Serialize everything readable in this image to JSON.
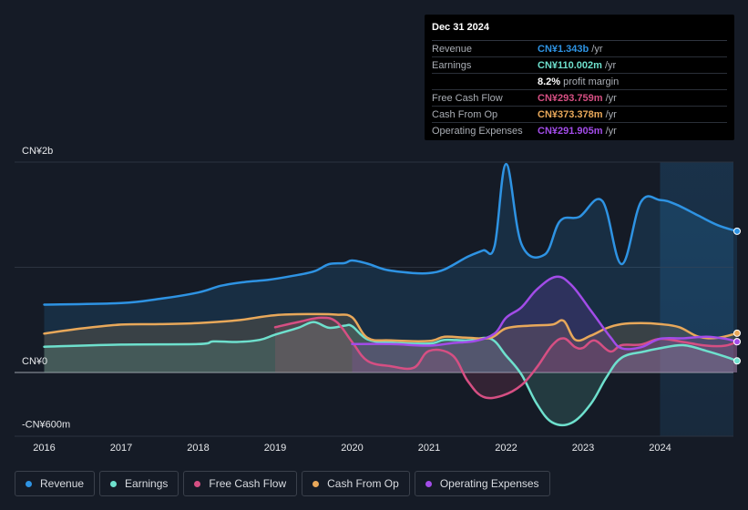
{
  "tooltip": {
    "date": "Dec 31 2024",
    "rows": [
      {
        "label": "Revenue",
        "value": "CN¥1.343b",
        "unit": "/yr",
        "color": "#2e93e3"
      },
      {
        "label": "Earnings",
        "value": "CN¥110.002m",
        "unit": "/yr",
        "color": "#6ee0cd"
      },
      {
        "label": "",
        "value": "8.2%",
        "unit": "profit margin",
        "color": "#ffffff"
      },
      {
        "label": "Free Cash Flow",
        "value": "CN¥293.759m",
        "unit": "/yr",
        "color": "#d64f83"
      },
      {
        "label": "Cash From Op",
        "value": "CN¥373.378m",
        "unit": "/yr",
        "color": "#e8a85a"
      },
      {
        "label": "Operating Expenses",
        "value": "CN¥291.905m",
        "unit": "/yr",
        "color": "#a24ce8"
      }
    ]
  },
  "legend": [
    {
      "label": "Revenue",
      "color": "#2e93e3"
    },
    {
      "label": "Earnings",
      "color": "#6ee0cd"
    },
    {
      "label": "Free Cash Flow",
      "color": "#d64f83"
    },
    {
      "label": "Cash From Op",
      "color": "#e8a85a"
    },
    {
      "label": "Operating Expenses",
      "color": "#a24ce8"
    }
  ],
  "chart_data": {
    "type": "area",
    "title": "",
    "xlabel": "",
    "ylabel": "",
    "y_tick_labels": [
      "CN¥2b",
      "CN¥0",
      "-CN¥600m"
    ],
    "y_ticks": [
      2000,
      0,
      -600
    ],
    "ylim": [
      -600,
      2000
    ],
    "xlim": [
      2015.6,
      2025.0
    ],
    "x_tick_labels": [
      "2016",
      "2017",
      "2018",
      "2019",
      "2020",
      "2021",
      "2022",
      "2023",
      "2024"
    ],
    "x_ticks": [
      2016,
      2017,
      2018,
      2019,
      2020,
      2021,
      2022,
      2023,
      2024
    ],
    "forecast_start": 2024.0,
    "series": [
      {
        "name": "Revenue",
        "color": "#2e93e3",
        "points": [
          [
            2016.0,
            645
          ],
          [
            2017.0,
            660
          ],
          [
            2017.5,
            700
          ],
          [
            2018.0,
            760
          ],
          [
            2018.3,
            825
          ],
          [
            2018.6,
            860
          ],
          [
            2018.9,
            880
          ],
          [
            2019.2,
            915
          ],
          [
            2019.5,
            960
          ],
          [
            2019.7,
            1030
          ],
          [
            2019.9,
            1040
          ],
          [
            2020.0,
            1065
          ],
          [
            2020.2,
            1035
          ],
          [
            2020.45,
            975
          ],
          [
            2020.8,
            945
          ],
          [
            2021.0,
            945
          ],
          [
            2021.2,
            980
          ],
          [
            2021.5,
            1100
          ],
          [
            2021.7,
            1160
          ],
          [
            2021.85,
            1200
          ],
          [
            2022.0,
            1982
          ],
          [
            2022.2,
            1220
          ],
          [
            2022.5,
            1120
          ],
          [
            2022.7,
            1440
          ],
          [
            2022.95,
            1480
          ],
          [
            2023.25,
            1630
          ],
          [
            2023.5,
            1030
          ],
          [
            2023.75,
            1620
          ],
          [
            2024.0,
            1640
          ],
          [
            2024.2,
            1600
          ],
          [
            2024.5,
            1490
          ],
          [
            2024.75,
            1400
          ],
          [
            2025.0,
            1343
          ]
        ]
      },
      {
        "name": "Earnings",
        "color": "#6ee0cd",
        "points": [
          [
            2016.0,
            245
          ],
          [
            2017.0,
            265
          ],
          [
            2018.0,
            270
          ],
          [
            2018.2,
            295
          ],
          [
            2018.5,
            290
          ],
          [
            2018.8,
            310
          ],
          [
            2019.0,
            360
          ],
          [
            2019.3,
            425
          ],
          [
            2019.5,
            480
          ],
          [
            2019.7,
            425
          ],
          [
            2019.9,
            445
          ],
          [
            2020.0,
            440
          ],
          [
            2020.2,
            315
          ],
          [
            2020.5,
            285
          ],
          [
            2021.0,
            275
          ],
          [
            2021.2,
            310
          ],
          [
            2021.5,
            305
          ],
          [
            2021.8,
            320
          ],
          [
            2022.0,
            160
          ],
          [
            2022.2,
            -20
          ],
          [
            2022.4,
            -300
          ],
          [
            2022.6,
            -475
          ],
          [
            2022.85,
            -480
          ],
          [
            2023.1,
            -300
          ],
          [
            2023.3,
            -50
          ],
          [
            2023.5,
            140
          ],
          [
            2023.8,
            200
          ],
          [
            2024.0,
            230
          ],
          [
            2024.3,
            260
          ],
          [
            2024.6,
            205
          ],
          [
            2024.85,
            150
          ],
          [
            2025.0,
            110
          ]
        ]
      },
      {
        "name": "Free Cash Flow",
        "color": "#d64f83",
        "points": [
          [
            2019.0,
            430
          ],
          [
            2019.3,
            480
          ],
          [
            2019.6,
            520
          ],
          [
            2019.8,
            480
          ],
          [
            2020.0,
            290
          ],
          [
            2020.2,
            110
          ],
          [
            2020.5,
            60
          ],
          [
            2020.8,
            45
          ],
          [
            2021.0,
            205
          ],
          [
            2021.3,
            165
          ],
          [
            2021.5,
            -80
          ],
          [
            2021.7,
            -230
          ],
          [
            2021.95,
            -220
          ],
          [
            2022.2,
            -120
          ],
          [
            2022.4,
            50
          ],
          [
            2022.6,
            260
          ],
          [
            2022.75,
            325
          ],
          [
            2022.9,
            240
          ],
          [
            2023.0,
            235
          ],
          [
            2023.15,
            305
          ],
          [
            2023.35,
            200
          ],
          [
            2023.5,
            260
          ],
          [
            2023.75,
            265
          ],
          [
            2024.0,
            320
          ],
          [
            2024.3,
            290
          ],
          [
            2024.6,
            255
          ],
          [
            2024.85,
            255
          ],
          [
            2025.0,
            293.759
          ]
        ]
      },
      {
        "name": "Cash From Op",
        "color": "#e8a85a",
        "points": [
          [
            2016.0,
            370
          ],
          [
            2016.5,
            420
          ],
          [
            2017.0,
            455
          ],
          [
            2017.5,
            460
          ],
          [
            2018.0,
            470
          ],
          [
            2018.5,
            495
          ],
          [
            2019.0,
            545
          ],
          [
            2019.5,
            555
          ],
          [
            2019.8,
            550
          ],
          [
            2020.0,
            525
          ],
          [
            2020.2,
            330
          ],
          [
            2020.5,
            305
          ],
          [
            2021.0,
            300
          ],
          [
            2021.2,
            340
          ],
          [
            2021.5,
            330
          ],
          [
            2021.8,
            330
          ],
          [
            2022.0,
            420
          ],
          [
            2022.3,
            445
          ],
          [
            2022.6,
            455
          ],
          [
            2022.75,
            490
          ],
          [
            2022.9,
            310
          ],
          [
            2023.1,
            350
          ],
          [
            2023.3,
            420
          ],
          [
            2023.5,
            460
          ],
          [
            2023.75,
            470
          ],
          [
            2024.0,
            460
          ],
          [
            2024.25,
            430
          ],
          [
            2024.5,
            340
          ],
          [
            2024.75,
            330
          ],
          [
            2025.0,
            373.378
          ]
        ]
      },
      {
        "name": "Operating Expenses",
        "color": "#a24ce8",
        "points": [
          [
            2020.0,
            270
          ],
          [
            2020.5,
            270
          ],
          [
            2021.0,
            255
          ],
          [
            2021.3,
            280
          ],
          [
            2021.6,
            300
          ],
          [
            2021.85,
            370
          ],
          [
            2022.0,
            520
          ],
          [
            2022.2,
            620
          ],
          [
            2022.4,
            790
          ],
          [
            2022.65,
            910
          ],
          [
            2022.85,
            830
          ],
          [
            2023.1,
            590
          ],
          [
            2023.35,
            340
          ],
          [
            2023.5,
            230
          ],
          [
            2023.75,
            240
          ],
          [
            2024.0,
            320
          ],
          [
            2024.3,
            325
          ],
          [
            2024.6,
            340
          ],
          [
            2024.85,
            320
          ],
          [
            2025.0,
            291.905
          ]
        ]
      }
    ]
  }
}
